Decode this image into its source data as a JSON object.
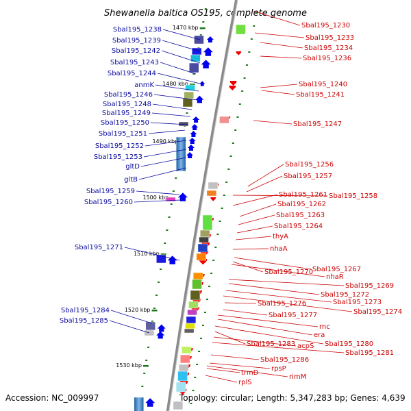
{
  "title": "Shewanella baltica OS195, complete genome",
  "footer": {
    "accession": "Accession: NC_009997",
    "summary": "Topology: circular; Length: 5,347,283 bp; Genes: 4,639"
  },
  "colors": {
    "forward_label": "#0a0aa0",
    "reverse_label": "#cc0000",
    "forward_gene": "#0000ee",
    "reverse_gene": "#ee0000",
    "backbone": "#8a8a8a",
    "ticks": "#1a7a1a"
  },
  "scale_labels": [
    "1470 kbp",
    "1480 kbp",
    "1490 kbp",
    "1500 kbp",
    "1510 kbp",
    "1520 kbp",
    "1530 kbp"
  ],
  "left_labels": [
    "Sbal195_1238",
    "Sbal195_1239",
    "Sbal195_1242",
    "Sbal195_1243",
    "Sbal195_1244",
    "anmK",
    "Sbal195_1246",
    "Sbal195_1248",
    "Sbal195_1249",
    "Sbal195_1250",
    "Sbal195_1251",
    "Sbal195_1252",
    "Sbal195_1253",
    "gltD",
    "gltB",
    "Sbal195_1259",
    "Sbal195_1260",
    "Sbal195_1271",
    "Sbal195_1284",
    "Sbal195_1285"
  ],
  "right_labels": [
    "Sbal195_1230",
    "Sbal195_1233",
    "Sbal195_1234",
    "Sbal195_1236",
    "Sbal195_1240",
    "Sbal195_1241",
    "Sbal195_1247",
    "Sbal195_1256",
    "Sbal195_1257",
    "Sbal195_1261",
    "Sbal195_1258",
    "Sbal195_1262",
    "Sbal195_1263",
    "Sbal195_1264",
    "thyA",
    "nhaA",
    "Sbal195_1267",
    "Sbal195_1270",
    "nhaR",
    "Sbal195_1269",
    "Sbal195_1272",
    "Sbal195_1273",
    "Sbal195_1274",
    "Sbal195_1276",
    "Sbal195_1277",
    "rnc",
    "era",
    "Sbal195_1280",
    "Sbal195_1283",
    "acpS",
    "Sbal195_1281",
    "Sbal195_1286",
    "rpsP",
    "trmD",
    "rimM",
    "rplS"
  ]
}
